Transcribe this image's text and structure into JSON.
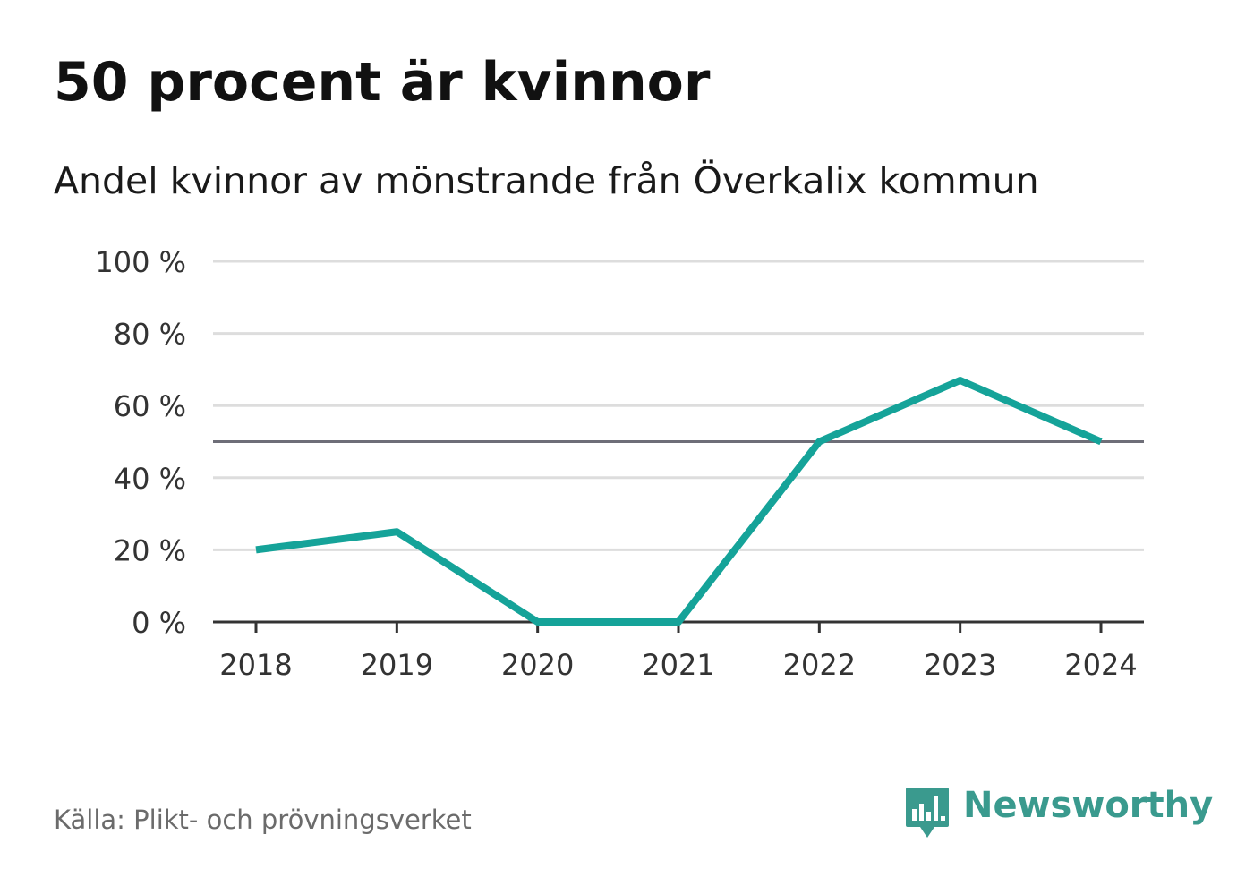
{
  "title": "50 procent är kvinnor",
  "subtitle": "Andel kvinnor av mönstrande från Överkalix kommun",
  "source": "Källa: Plikt- och prövningsverket",
  "brand": {
    "name": "Newsworthy",
    "icon": "bar-chart-speech-bubble-icon",
    "color": "#3a9a8e"
  },
  "chart_data": {
    "type": "line",
    "title": "50 procent är kvinnor",
    "subtitle": "Andel kvinnor av mönstrande från Överkalix kommun",
    "x": [
      2018,
      2019,
      2020,
      2021,
      2022,
      2023,
      2024
    ],
    "x_tick_labels": [
      "2018",
      "2019",
      "2020",
      "2021",
      "2022",
      "2023",
      "2024"
    ],
    "series": [
      {
        "values": [
          20,
          25,
          0,
          0,
          50,
          67,
          50
        ],
        "color": "#15a399"
      }
    ],
    "ylim": [
      0,
      100
    ],
    "y_ticks": [
      0,
      20,
      40,
      60,
      80,
      100
    ],
    "y_tick_labels": [
      "0 %",
      "20 %",
      "40 %",
      "60 %",
      "80 %",
      "100 %"
    ],
    "reference_line": {
      "y": 50,
      "color": "#6e6e78"
    },
    "grid": true,
    "grid_color": "#dddddd",
    "axis_color": "#333333",
    "legend": "none"
  }
}
